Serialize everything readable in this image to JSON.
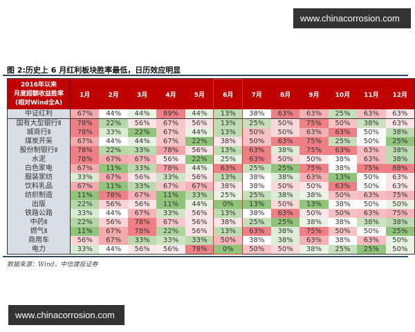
{
  "watermark": "www.chinacorrosion.com",
  "title": "图 2:历史上 6 月红利板块胜率最低，日历效应明显",
  "header": {
    "label_lines": [
      "2016年以来",
      "月度超额收益胜率",
      "(相对Wind全A)"
    ],
    "months": [
      "1月",
      "2月",
      "3月",
      "4月",
      "5月",
      "6月",
      "7月",
      "8月",
      "9月",
      "10月",
      "11月",
      "12月"
    ],
    "highlighted_month": "6月"
  },
  "rows": [
    {
      "name": "中证红利",
      "values": [
        67,
        44,
        44,
        89,
        44,
        13,
        38,
        63,
        63,
        25,
        63,
        63
      ]
    },
    {
      "name": "国有大型银行Ⅱ",
      "values": [
        78,
        22,
        56,
        67,
        56,
        13,
        25,
        50,
        75,
        50,
        38,
        63
      ]
    },
    {
      "name": "城商行Ⅱ",
      "values": [
        78,
        33,
        22,
        67,
        44,
        13,
        50,
        50,
        63,
        63,
        50,
        38
      ]
    },
    {
      "name": "煤炭开采",
      "values": [
        67,
        44,
        44,
        67,
        22,
        38,
        50,
        63,
        75,
        25,
        50,
        25
      ]
    },
    {
      "name": "股份制银行Ⅱ",
      "values": [
        78,
        22,
        33,
        78,
        56,
        13,
        63,
        38,
        75,
        63,
        63,
        38
      ]
    },
    {
      "name": "水泥",
      "values": [
        78,
        67,
        67,
        56,
        22,
        25,
        63,
        50,
        50,
        38,
        63,
        38
      ]
    },
    {
      "name": "白色家电",
      "values": [
        67,
        11,
        33,
        78,
        44,
        63,
        25,
        25,
        75,
        38,
        75,
        88
      ]
    },
    {
      "name": "服装家纺",
      "values": [
        33,
        67,
        56,
        33,
        56,
        13,
        38,
        38,
        63,
        13,
        50,
        63
      ]
    },
    {
      "name": "饮料乳品",
      "values": [
        67,
        11,
        33,
        67,
        67,
        38,
        38,
        50,
        50,
        63,
        50,
        63
      ]
    },
    {
      "name": "纺织制造",
      "values": [
        11,
        78,
        67,
        11,
        33,
        25,
        25,
        38,
        38,
        50,
        63,
        75
      ]
    },
    {
      "name": "出版",
      "values": [
        22,
        56,
        56,
        11,
        44,
        0,
        13,
        50,
        13,
        38,
        50,
        50
      ]
    },
    {
      "name": "铁路公路",
      "values": [
        33,
        44,
        67,
        33,
        56,
        13,
        38,
        63,
        50,
        50,
        63,
        75
      ]
    },
    {
      "name": "中药Ⅱ",
      "values": [
        22,
        56,
        78,
        67,
        56,
        38,
        25,
        25,
        38,
        38,
        38,
        38
      ]
    },
    {
      "name": "燃气Ⅱ",
      "values": [
        11,
        67,
        78,
        22,
        56,
        13,
        63,
        38,
        75,
        50,
        50,
        25
      ]
    },
    {
      "name": "商用车",
      "values": [
        56,
        67,
        33,
        33,
        33,
        50,
        38,
        38,
        63,
        38,
        63,
        50
      ]
    },
    {
      "name": "电力",
      "values": [
        33,
        44,
        56,
        56,
        78,
        0,
        50,
        50,
        38,
        25,
        25,
        50
      ]
    }
  ],
  "source": "数据来源：Wind，中信建投证券",
  "colors": {
    "header": "#c00000",
    "low": "#8fc47a",
    "high": "#ee7f85",
    "label_bg": "#d9dde6"
  }
}
